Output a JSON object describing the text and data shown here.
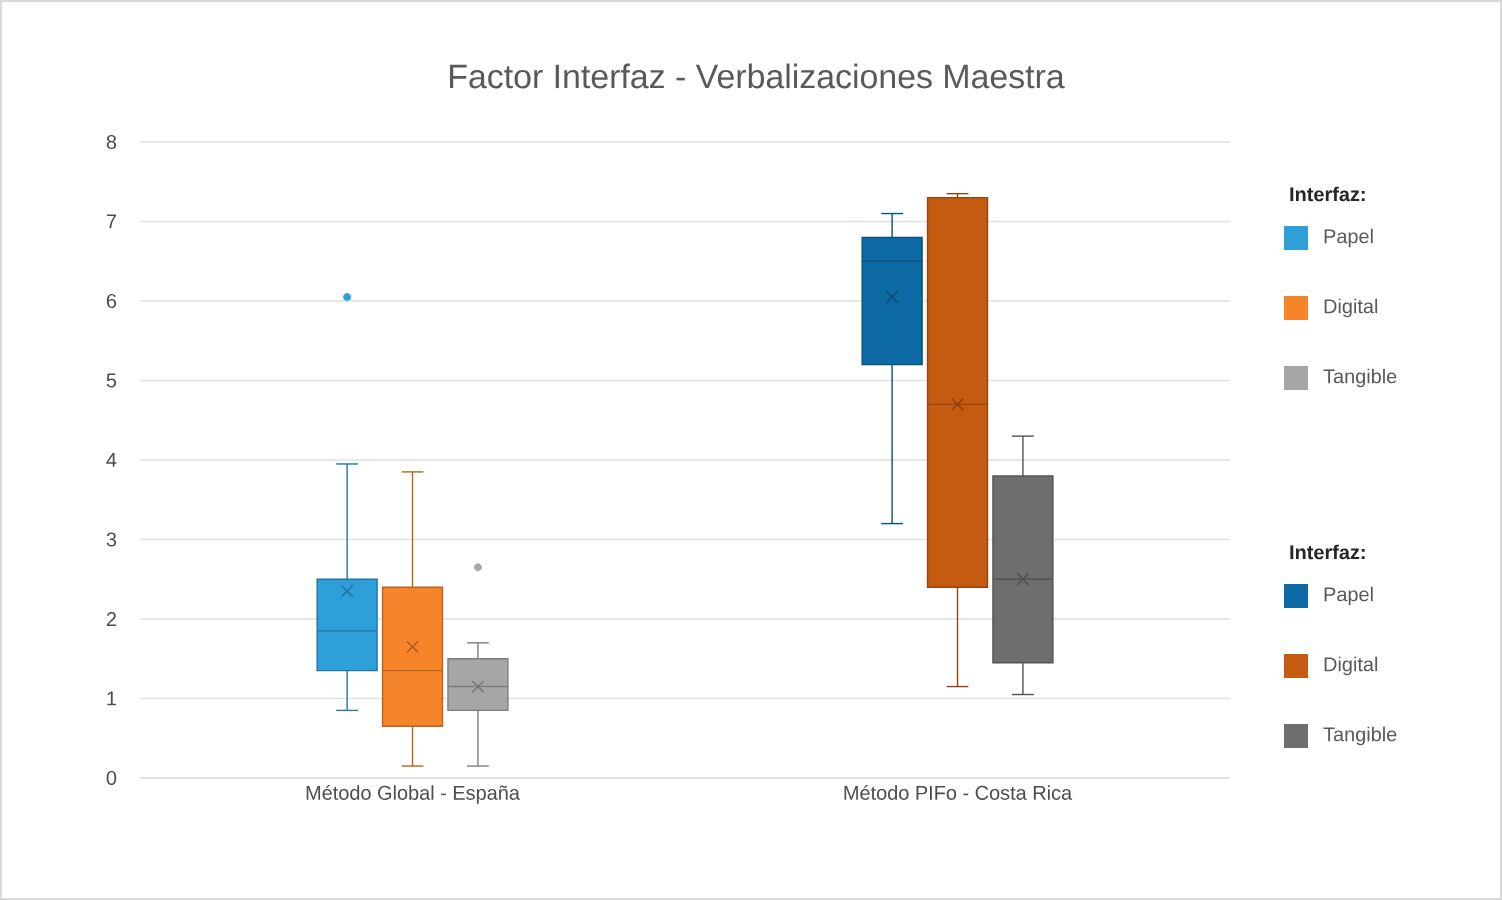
{
  "chart_data": {
    "type": "box",
    "title": "Factor Interfaz - Verbalizaciones Maestra",
    "categories": [
      "Método Global - España",
      "Método PIFo - Costa Rica"
    ],
    "legend_title": "Interfaz:",
    "legend": "right",
    "grid": "y",
    "ylim": [
      0,
      8
    ],
    "yticks": [
      0,
      1,
      2,
      3,
      4,
      5,
      6,
      7,
      8
    ],
    "series": [
      {
        "name": "Papel",
        "color": "#2e9fd8",
        "boxes": [
          {
            "low": 0.85,
            "q1": 1.35,
            "median": 1.85,
            "q3": 2.5,
            "high": 3.95,
            "mean": 2.35,
            "outliers": [
              6.05
            ]
          },
          null
        ]
      },
      {
        "name": "Digital",
        "color": "#f5842a",
        "boxes": [
          {
            "low": 0.15,
            "q1": 0.65,
            "median": 1.35,
            "q3": 2.4,
            "high": 3.85,
            "mean": 1.65
          },
          null
        ]
      },
      {
        "name": "Tangible",
        "color": "#a6a6a6",
        "boxes": [
          {
            "low": 0.15,
            "q1": 0.85,
            "median": 1.15,
            "q3": 1.5,
            "high": 1.7,
            "mean": 1.15,
            "outliers": [
              2.65
            ]
          },
          null
        ]
      },
      {
        "name": "Papel",
        "color": "#0e6aa5",
        "boxes": [
          null,
          {
            "low": 3.2,
            "q1": 5.2,
            "median": 6.5,
            "q3": 6.8,
            "high": 7.1,
            "mean": 6.05
          }
        ]
      },
      {
        "name": "Digital",
        "color": "#c55a11",
        "boxes": [
          null,
          {
            "low": 1.15,
            "q1": 2.4,
            "median": 4.7,
            "q3": 7.3,
            "high": 7.35,
            "mean": 4.7
          }
        ]
      },
      {
        "name": "Tangible",
        "color": "#6e6e6e",
        "boxes": [
          null,
          {
            "low": 1.05,
            "q1": 1.45,
            "median": 2.5,
            "q3": 3.8,
            "high": 4.3,
            "mean": 2.5
          }
        ]
      }
    ]
  }
}
